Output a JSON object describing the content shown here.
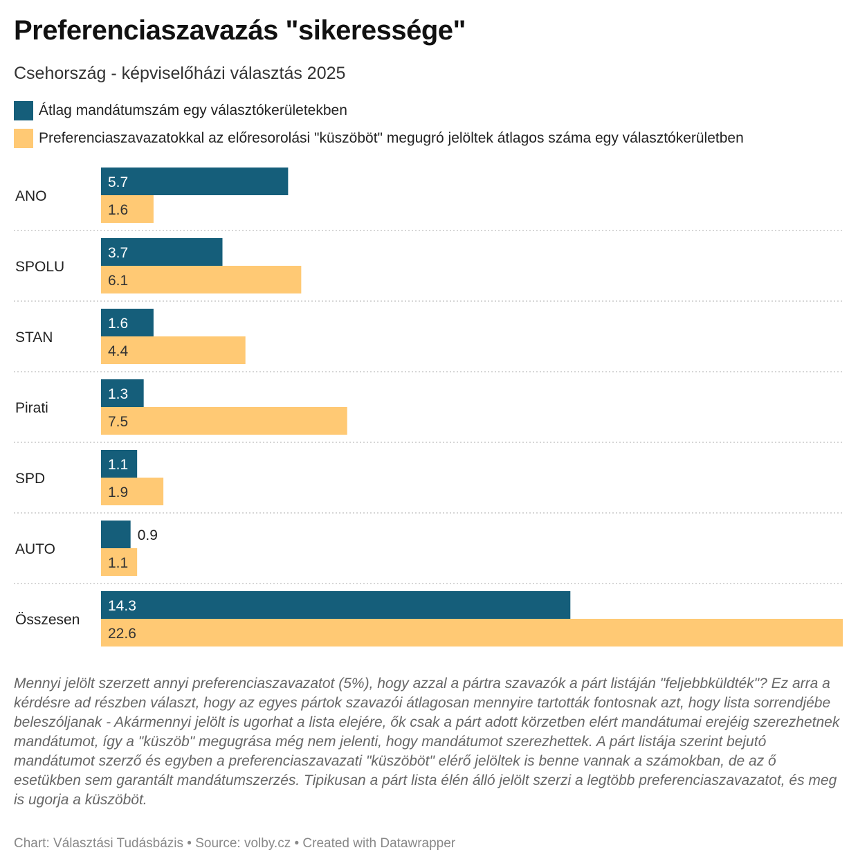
{
  "header": {
    "title": "Preferenciaszavazás \"sikeressége\"",
    "subtitle": "Csehország - képviselőházi választás 2025"
  },
  "colors": {
    "series_1": "#155e7a",
    "series_2": "#ffc974"
  },
  "chart_data": {
    "type": "bar",
    "orientation": "horizontal",
    "categories": [
      "ANO",
      "SPOLU",
      "STAN",
      "Pirati",
      "SPD",
      "AUTO",
      "Összesen"
    ],
    "series": [
      {
        "name": "Átlag mandátumszám egy választókerületekben",
        "values": [
          5.7,
          3.7,
          1.6,
          1.3,
          1.1,
          0.9,
          14.3
        ]
      },
      {
        "name": "Preferenciaszavazatokkal az előresorolási \"küszöböt\" megugró jelöltek átlagos száma egy választókerületben",
        "values": [
          1.6,
          6.1,
          4.4,
          7.5,
          1.9,
          1.1,
          22.6
        ]
      }
    ],
    "xlim": [
      0,
      22.6
    ],
    "legend": "top-left",
    "grid": false
  },
  "notes": {
    "description": "Mennyi jelölt szerzett annyi preferenciaszavazatot (5%), hogy azzal a pártra szavazók a párt listáján \"feljebbküldték\"? Ez arra a kérdésre ad részben választ, hogy az egyes pártok szavazói átlagosan mennyire tartották fontosnak azt, hogy lista sorrendjébe beleszóljanak - Akármennyi jelölt is ugorhat a lista elejére, ők csak a párt adott körzetben elért mandátumai erejéig szerezhetnek mandátumot, így a \"küszöb\" megugrása még nem jelenti, hogy mandátumot szerezhettek. A párt listája szerint bejutó mandátumot szerző és egyben a preferenciaszavazati \"küszöböt\" elérő jelöltek is benne vannak a számokban, de az ő esetükben sem garantált mandátumszerzés. Tipikusan a párt lista élén álló jelölt szerzi a legtöbb preferenciaszavazatot, és meg is ugorja a küszöböt.",
    "footer": "Chart: Választási Tudásbázis • Source: volby.cz • Created with Datawrapper"
  }
}
